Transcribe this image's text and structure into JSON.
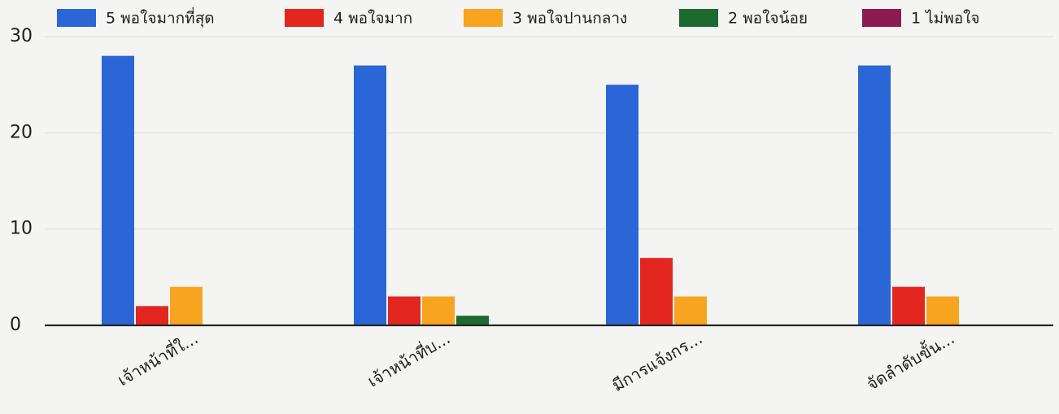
{
  "chart_data": {
    "type": "bar",
    "categories": [
      "เจ้าหน้าที่ใ...",
      "เจ้าหน้าที่บ...",
      "มีการแจ้งกร...",
      "จัดลำดับขั้น..."
    ],
    "series": [
      {
        "name": "5 พอใจมากที่สุด",
        "color": "#2a66d6",
        "values": [
          28,
          27,
          25,
          27
        ]
      },
      {
        "name": "4 พอใจมาก",
        "color": "#e3261f",
        "values": [
          2,
          3,
          7,
          4
        ]
      },
      {
        "name": "3 พอใจปานกลาง",
        "color": "#f7a520",
        "values": [
          4,
          3,
          3,
          3
        ]
      },
      {
        "name": "2 พอใจน้อย",
        "color": "#1d6a31",
        "values": [
          0,
          1,
          0,
          0
        ]
      },
      {
        "name": "1 ไม่พอใจ",
        "color": "#8c1b4f",
        "values": [
          0,
          0,
          0,
          0
        ]
      }
    ],
    "y_ticks": [
      0,
      10,
      20,
      30
    ],
    "ylim": [
      0,
      30
    ],
    "grid": true,
    "legend_position": "top"
  }
}
